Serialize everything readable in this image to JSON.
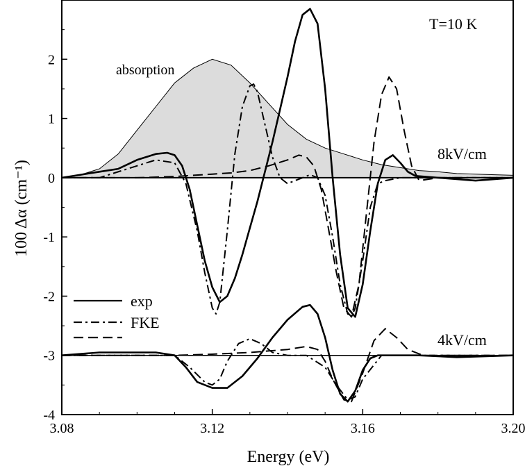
{
  "chart_data": {
    "type": "line",
    "xlabel": "Energy (eV)",
    "ylabel": "100 Δα (cm⁻¹)",
    "xlim": [
      3.08,
      3.2
    ],
    "ylim": [
      -4,
      3
    ],
    "x_ticks": [
      "3.08",
      "3.12",
      "3.16",
      "3.20"
    ],
    "y_ticks": [
      "-4",
      "-3",
      "-2",
      "-1",
      "0",
      "1",
      "2"
    ],
    "annotations": {
      "temperature": "T=10 K",
      "absorption_label": "absorption",
      "field_high": "8kV/cm",
      "field_low": "4kV/cm"
    },
    "legend": {
      "position": "lower-left",
      "entries": [
        "exp",
        "FKE"
      ]
    },
    "colors": {
      "line": "#000000",
      "absorption_fill": "#dcdcdc"
    },
    "absorption": {
      "x": [
        3.08,
        3.085,
        3.09,
        3.095,
        3.1,
        3.105,
        3.11,
        3.115,
        3.12,
        3.125,
        3.13,
        3.135,
        3.14,
        3.145,
        3.15,
        3.155,
        3.16,
        3.165,
        3.17,
        3.175,
        3.18,
        3.185,
        3.19,
        3.195,
        3.2
      ],
      "y": [
        0.0,
        0.05,
        0.15,
        0.4,
        0.8,
        1.2,
        1.6,
        1.85,
        2.0,
        1.9,
        1.6,
        1.25,
        0.9,
        0.65,
        0.5,
        0.4,
        0.3,
        0.22,
        0.17,
        0.12,
        0.1,
        0.07,
        0.06,
        0.05,
        0.04
      ]
    },
    "series": [
      {
        "name": "exp",
        "field": "8kV/cm",
        "style": "solid",
        "offset": 0,
        "x": [
          3.08,
          3.085,
          3.09,
          3.095,
          3.1,
          3.105,
          3.108,
          3.11,
          3.112,
          3.114,
          3.116,
          3.118,
          3.12,
          3.122,
          3.124,
          3.126,
          3.128,
          3.13,
          3.132,
          3.134,
          3.136,
          3.138,
          3.14,
          3.142,
          3.144,
          3.146,
          3.148,
          3.15,
          3.152,
          3.154,
          3.156,
          3.158,
          3.16,
          3.162,
          3.164,
          3.166,
          3.168,
          3.17,
          3.172,
          3.174,
          3.18,
          3.19,
          3.2
        ],
        "y": [
          0.0,
          0.05,
          0.1,
          0.15,
          0.3,
          0.4,
          0.42,
          0.38,
          0.2,
          -0.2,
          -0.8,
          -1.4,
          -1.85,
          -2.1,
          -2.0,
          -1.7,
          -1.3,
          -0.85,
          -0.4,
          0.1,
          0.6,
          1.15,
          1.7,
          2.3,
          2.75,
          2.85,
          2.6,
          1.5,
          0.0,
          -1.3,
          -2.2,
          -2.35,
          -1.8,
          -0.9,
          -0.1,
          0.3,
          0.38,
          0.25,
          0.1,
          0.03,
          0.0,
          -0.05,
          0.0
        ]
      },
      {
        "name": "FKE",
        "field": "8kV/cm",
        "style": "dash-dot",
        "offset": 0,
        "x": [
          3.08,
          3.09,
          3.1,
          3.105,
          3.11,
          3.113,
          3.116,
          3.118,
          3.12,
          3.121,
          3.122,
          3.124,
          3.126,
          3.128,
          3.13,
          3.131,
          3.132,
          3.134,
          3.136,
          3.138,
          3.14,
          3.142,
          3.144,
          3.146,
          3.148,
          3.15,
          3.152,
          3.154,
          3.156,
          3.157,
          3.158,
          3.16,
          3.162,
          3.164,
          3.166,
          3.17,
          3.18,
          3.2
        ],
        "y": [
          0.0,
          0.0,
          0.2,
          0.3,
          0.25,
          -0.1,
          -0.9,
          -1.6,
          -2.2,
          -2.3,
          -2.1,
          -0.9,
          0.4,
          1.2,
          1.55,
          1.58,
          1.45,
          0.9,
          0.35,
          0.0,
          -0.1,
          -0.05,
          0.0,
          0.05,
          0.0,
          -0.3,
          -1.0,
          -1.8,
          -2.3,
          -2.35,
          -2.2,
          -1.4,
          -0.5,
          -0.1,
          -0.05,
          0.0,
          0.0,
          0.0
        ]
      },
      {
        "name": "FKE",
        "field": "8kV/cm",
        "style": "dashed",
        "offset": 0,
        "x": [
          3.08,
          3.09,
          3.1,
          3.11,
          3.115,
          3.12,
          3.125,
          3.13,
          3.135,
          3.14,
          3.143,
          3.145,
          3.147,
          3.149,
          3.151,
          3.153,
          3.155,
          3.157,
          3.159,
          3.161,
          3.163,
          3.165,
          3.167,
          3.169,
          3.171,
          3.173,
          3.175,
          3.18,
          3.19,
          3.2
        ],
        "y": [
          0.0,
          0.0,
          0.0,
          0.02,
          0.04,
          0.06,
          0.08,
          0.12,
          0.2,
          0.3,
          0.38,
          0.35,
          0.2,
          -0.2,
          -0.9,
          -1.6,
          -2.2,
          -2.35,
          -1.8,
          -0.6,
          0.6,
          1.4,
          1.7,
          1.5,
          0.8,
          0.2,
          -0.05,
          0.0,
          0.0,
          0.0
        ]
      },
      {
        "name": "exp",
        "field": "4kV/cm",
        "style": "solid",
        "offset": -3,
        "x": [
          3.08,
          3.09,
          3.1,
          3.105,
          3.11,
          3.113,
          3.116,
          3.12,
          3.124,
          3.128,
          3.132,
          3.136,
          3.14,
          3.144,
          3.146,
          3.148,
          3.15,
          3.152,
          3.154,
          3.156,
          3.158,
          3.16,
          3.162,
          3.164,
          3.168,
          3.175,
          3.185,
          3.2
        ],
        "y": [
          0.0,
          0.05,
          0.05,
          0.05,
          0.0,
          -0.2,
          -0.45,
          -0.55,
          -0.55,
          -0.35,
          -0.05,
          0.3,
          0.6,
          0.82,
          0.85,
          0.7,
          0.3,
          -0.25,
          -0.65,
          -0.78,
          -0.6,
          -0.25,
          -0.05,
          0.0,
          0.0,
          0.0,
          -0.03,
          0.0
        ]
      },
      {
        "name": "FKE",
        "field": "4kV/cm",
        "style": "dash-dot",
        "offset": -3,
        "x": [
          3.08,
          3.1,
          3.11,
          3.114,
          3.118,
          3.12,
          3.122,
          3.124,
          3.127,
          3.13,
          3.133,
          3.136,
          3.14,
          3.145,
          3.15,
          3.153,
          3.156,
          3.158,
          3.16,
          3.165,
          3.2
        ],
        "y": [
          0.0,
          0.0,
          0.0,
          -0.2,
          -0.45,
          -0.5,
          -0.4,
          -0.1,
          0.2,
          0.28,
          0.2,
          0.05,
          0.0,
          0.0,
          -0.2,
          -0.5,
          -0.75,
          -0.7,
          -0.4,
          0.0,
          0.0
        ]
      },
      {
        "name": "FKE",
        "field": "4kV/cm",
        "style": "dashed",
        "offset": -3,
        "x": [
          3.08,
          3.11,
          3.12,
          3.13,
          3.14,
          3.145,
          3.148,
          3.15,
          3.152,
          3.155,
          3.157,
          3.16,
          3.163,
          3.166,
          3.169,
          3.172,
          3.176,
          3.2
        ],
        "y": [
          0.0,
          0.0,
          0.02,
          0.05,
          0.1,
          0.15,
          0.1,
          -0.1,
          -0.4,
          -0.75,
          -0.78,
          -0.3,
          0.25,
          0.45,
          0.3,
          0.1,
          0.0,
          0.0
        ]
      }
    ]
  }
}
